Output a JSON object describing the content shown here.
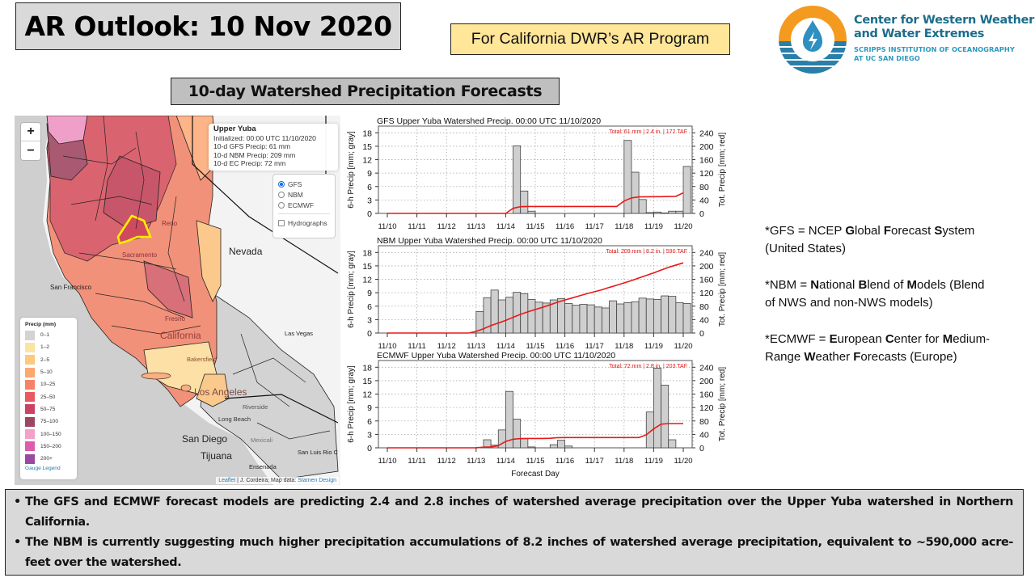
{
  "header": {
    "title": "AR Outlook: 10 Nov 2020",
    "program": "For California DWR’s AR Program",
    "subtitle": "10-day Watershed Precipitation Forecasts"
  },
  "logo": {
    "name_line1": "Center for Western Weather",
    "name_line2": "and Water Extremes",
    "sub_line1": "SCRIPPS INSTITUTION OF OCEANOGRAPHY",
    "sub_line2": "AT UC SAN DIEGO",
    "colors": {
      "orange": "#f39a1f",
      "blue": "#2a7fa8",
      "dark_blue": "#1c6d8c"
    }
  },
  "map": {
    "zoom_in": "+",
    "zoom_out": "−",
    "info": {
      "watershed": "Upper Yuba",
      "initialized": "Initialized: 00:00 UTC 11/10/2020",
      "gfs": "10-d GFS Precip: 61 mm",
      "nbm": "10-d NBM Precip: 209 mm",
      "ec": "10-d EC Precip: 72 mm"
    },
    "layers": {
      "options": [
        "GFS",
        "NBM",
        "ECMWF"
      ],
      "selected": "GFS",
      "hydrographs_label": "Hydrographs",
      "hydrographs_checked": false
    },
    "labels": {
      "nevada": "Nevada",
      "california": "California",
      "san_francisco": "San Francisco",
      "sacramento": "Sacramento",
      "reno": "Reno",
      "las_vegas": "Las Vegas",
      "los_angeles": "Los Angeles",
      "riverside": "Riverside",
      "long_beach": "Long Beach",
      "san_diego": "San Diego",
      "tijuana": "Tijuana",
      "ensenada": "Ensenada",
      "mexicali": "Mexicali",
      "san_luis": "San Luis Rio C",
      "fresno": "Fresno",
      "bakersfield": "Bakersfield"
    },
    "legend": {
      "title": "Precip (mm)",
      "items": [
        {
          "label": "0–1",
          "color": "#d3d3d3"
        },
        {
          "label": "1–2",
          "color": "#fde3a0"
        },
        {
          "label": "2–5",
          "color": "#fcc97e"
        },
        {
          "label": "5–10",
          "color": "#fca872"
        },
        {
          "label": "10–25",
          "color": "#f98166"
        },
        {
          "label": "25–50",
          "color": "#e85a5d"
        },
        {
          "label": "50–75",
          "color": "#cc4263"
        },
        {
          "label": "75–100",
          "color": "#9c4762"
        },
        {
          "label": "100–150",
          "color": "#f4a0c8"
        },
        {
          "label": "150–200",
          "color": "#dd5cab"
        },
        {
          "label": "200+",
          "color": "#9a4aa0"
        }
      ],
      "gauge_link": "Gauge Legend"
    },
    "attribution": {
      "leaflet": "Leaflet",
      "sep": " | J. Cordeira; Map data: ",
      "stamen": "Stamen Design"
    }
  },
  "notes": {
    "gfs": {
      "prefix": "*GFS = NCEP ",
      "parts": [
        [
          "G",
          "lobal "
        ],
        [
          "F",
          "orecast "
        ],
        [
          "S",
          "ystem"
        ]
      ],
      "suffix": "(United States)"
    },
    "nbm": {
      "prefix": "*NBM = ",
      "parts": [
        [
          "N",
          "ational "
        ],
        [
          "B",
          "lend of "
        ],
        [
          "M",
          "odels (Blend"
        ]
      ],
      "suffix": "of NWS and non-NWS models)"
    },
    "ecmwf": {
      "prefix": "*ECMWF = ",
      "parts": [
        [
          "E",
          "uropean "
        ],
        [
          "C",
          "enter for "
        ],
        [
          "M",
          "edium-"
        ]
      ],
      "line2_prefix": "Range ",
      "line2_parts": [
        [
          "W",
          "eather "
        ],
        [
          "F",
          "orecasts (Europe)"
        ]
      ]
    }
  },
  "summary": {
    "bullets": [
      "The GFS and ECMWF forecast models are predicting 2.4 and 2.8 inches of watershed average precipitation over the Upper Yuba watershed in Northern California.",
      "The NBM is currently suggesting much higher precipitation accumulations of 8.2 inches of watershed average precipitation, equivalent to ~590,000 acre-feet over the watershed."
    ]
  },
  "chart_data": [
    {
      "type": "bar",
      "id": "gfs",
      "title": "GFS Upper Yuba Watershed Precip. 00:00 UTC 11/10/2020",
      "total_label": "Total: 61 mm | 2.4 in. | 172 TAF",
      "ylabel": "6-h Precip [mm; gray]",
      "y2label": "Tot. Precip [mm; red]",
      "xlabel": "",
      "ylim": [
        0,
        19.5
      ],
      "y2lim": [
        0,
        260
      ],
      "yticks": [
        0,
        3,
        6,
        9,
        12,
        15,
        18
      ],
      "y2ticks": [
        0,
        40,
        80,
        120,
        160,
        200,
        240
      ],
      "categories": [
        "11/10",
        "11/11",
        "11/12",
        "11/13",
        "11/14",
        "11/15",
        "11/16",
        "11/17",
        "11/18",
        "11/19",
        "11/20"
      ],
      "bar_start_day": 0.25,
      "bar_width_day": 0.25,
      "bars_6h": [
        0,
        0,
        0,
        0,
        0,
        0,
        0,
        0,
        0,
        0,
        0,
        0,
        0,
        0,
        0,
        0,
        0,
        15.1,
        5.0,
        0.5,
        0,
        0,
        0,
        0,
        0,
        0,
        0,
        0,
        0,
        0,
        0,
        0,
        16.3,
        9.2,
        3.1,
        0.2,
        0.3,
        0.1,
        0.5,
        0.5,
        10.5
      ],
      "total_mm": [
        0,
        0,
        0,
        0,
        0,
        0,
        0,
        0,
        0,
        0,
        0,
        0,
        0,
        0,
        0,
        0,
        0,
        15.1,
        20.1,
        20.6,
        20.6,
        20.6,
        20.6,
        20.6,
        20.6,
        20.6,
        20.6,
        20.6,
        20.6,
        20.6,
        20.6,
        20.6,
        36.9,
        46.1,
        49.2,
        49.4,
        49.7,
        49.8,
        50.3,
        50.8,
        61.3
      ]
    },
    {
      "type": "bar",
      "id": "nbm",
      "title": "NBM Upper Yuba Watershed Precip. 00:00 UTC 11/10/2020",
      "total_label": "Total: 209 mm | 8.2 in. | 590 TAF",
      "ylabel": "6-h Precip [mm; gray]",
      "y2label": "Tot. Precip [mm; red]",
      "xlabel": "",
      "ylim": [
        0,
        19.5
      ],
      "y2lim": [
        0,
        260
      ],
      "yticks": [
        0,
        3,
        6,
        9,
        12,
        15,
        18
      ],
      "y2ticks": [
        0,
        40,
        80,
        120,
        160,
        200,
        240
      ],
      "categories": [
        "11/10",
        "11/11",
        "11/12",
        "11/13",
        "11/14",
        "11/15",
        "11/16",
        "11/17",
        "11/18",
        "11/19",
        "11/20"
      ],
      "bar_start_day": 0.25,
      "bar_width_day": 0.25,
      "bars_6h": [
        0,
        0,
        0,
        0,
        0,
        0,
        0,
        0,
        0,
        0,
        0,
        0,
        4.8,
        7.9,
        9.6,
        7.4,
        8.0,
        9.1,
        8.8,
        7.5,
        6.9,
        6.7,
        7.4,
        7.7,
        6.6,
        6.2,
        6.4,
        6.3,
        5.8,
        5.6,
        7.2,
        6.5,
        6.8,
        7.0,
        7.8,
        7.6,
        7.5,
        8.3,
        8.2,
        6.8,
        6.6
      ],
      "total_mm": [
        0,
        0,
        0,
        0,
        0,
        0,
        0,
        0,
        0,
        0,
        0,
        0,
        4.8,
        12.7,
        22.3,
        29.7,
        37.7,
        46.8,
        55.6,
        63.1,
        70.0,
        76.7,
        84.1,
        91.8,
        98.4,
        104.6,
        111.0,
        117.3,
        123.1,
        128.7,
        135.9,
        142.4,
        149.2,
        156.2,
        164.0,
        171.6,
        179.1,
        187.4,
        195.6,
        202.4,
        209.0
      ]
    },
    {
      "type": "bar",
      "id": "ecmwf",
      "title": "ECMWF Upper Yuba Watershed Precip. 00:00 UTC 11/10/2020",
      "total_label": "Total: 72 mm | 2.8 in. | 203 TAF",
      "ylabel": "6-h Precip [mm; gray]",
      "y2label": "Tot. Precip [mm; red]",
      "xlabel": "Forecast Day",
      "ylim": [
        0,
        19.5
      ],
      "y2lim": [
        0,
        260
      ],
      "yticks": [
        0,
        3,
        6,
        9,
        12,
        15,
        18
      ],
      "y2ticks": [
        0,
        40,
        80,
        120,
        160,
        200,
        240
      ],
      "categories": [
        "11/10",
        "11/11",
        "11/12",
        "11/13",
        "11/14",
        "11/15",
        "11/16",
        "11/17",
        "11/18",
        "11/19",
        "11/20"
      ],
      "bar_start_day": 0.25,
      "bar_width_day": 0.25,
      "bars_6h": [
        0,
        0,
        0,
        0,
        0,
        0,
        0,
        0,
        0,
        0,
        0,
        0,
        0.1,
        1.8,
        0.6,
        4.0,
        12.6,
        6.4,
        2.1,
        0.2,
        0,
        0,
        0.7,
        1.7,
        0.4,
        0,
        0,
        0,
        0,
        0,
        0,
        0,
        0,
        0,
        0,
        8.0,
        17.8,
        14.0,
        1.8,
        0,
        0
      ],
      "total_mm": [
        0,
        0,
        0,
        0,
        0,
        0,
        0,
        0,
        0,
        0,
        0,
        0,
        0.1,
        1.9,
        2.5,
        6.5,
        19.1,
        25.5,
        27.6,
        27.8,
        27.8,
        27.8,
        28.5,
        30.2,
        30.6,
        30.6,
        30.6,
        30.6,
        30.6,
        30.6,
        30.6,
        30.6,
        30.6,
        30.6,
        30.6,
        38.6,
        56.4,
        70.4,
        72.2,
        72.2,
        72.2
      ]
    }
  ]
}
